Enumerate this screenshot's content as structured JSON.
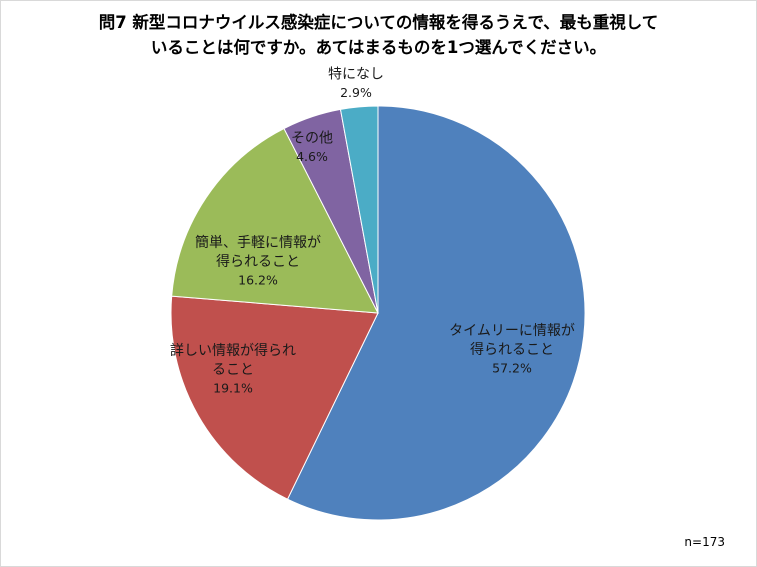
{
  "chart_data": {
    "type": "pie",
    "title_lines": [
      "問7  新型コロナウイルス感染症についての情報を得るうえで、最も重視して",
      "いることは何ですか。あてはまるものを1つ選んでください。"
    ],
    "slices": [
      {
        "label_lines": [
          "タイムリーに情報が",
          "得られること"
        ],
        "value": 57.2,
        "value_label": "57.2%",
        "color": "#4f81bd"
      },
      {
        "label_lines": [
          "詳しい情報が得られ",
          "ること"
        ],
        "value": 19.1,
        "value_label": "19.1%",
        "color": "#c0504d"
      },
      {
        "label_lines": [
          "簡単、手軽に情報が",
          "得られること"
        ],
        "value": 16.2,
        "value_label": "16.2%",
        "color": "#9bbb59"
      },
      {
        "label_lines": [
          "その他"
        ],
        "value": 4.6,
        "value_label": "4.6%",
        "color": "#8064a2"
      },
      {
        "label_lines": [
          "特になし"
        ],
        "value": 2.9,
        "value_label": "2.9%",
        "color": "#4bacc6"
      }
    ],
    "start": "12 o'clock",
    "direction": "clockwise",
    "sample_note": "n=173"
  }
}
